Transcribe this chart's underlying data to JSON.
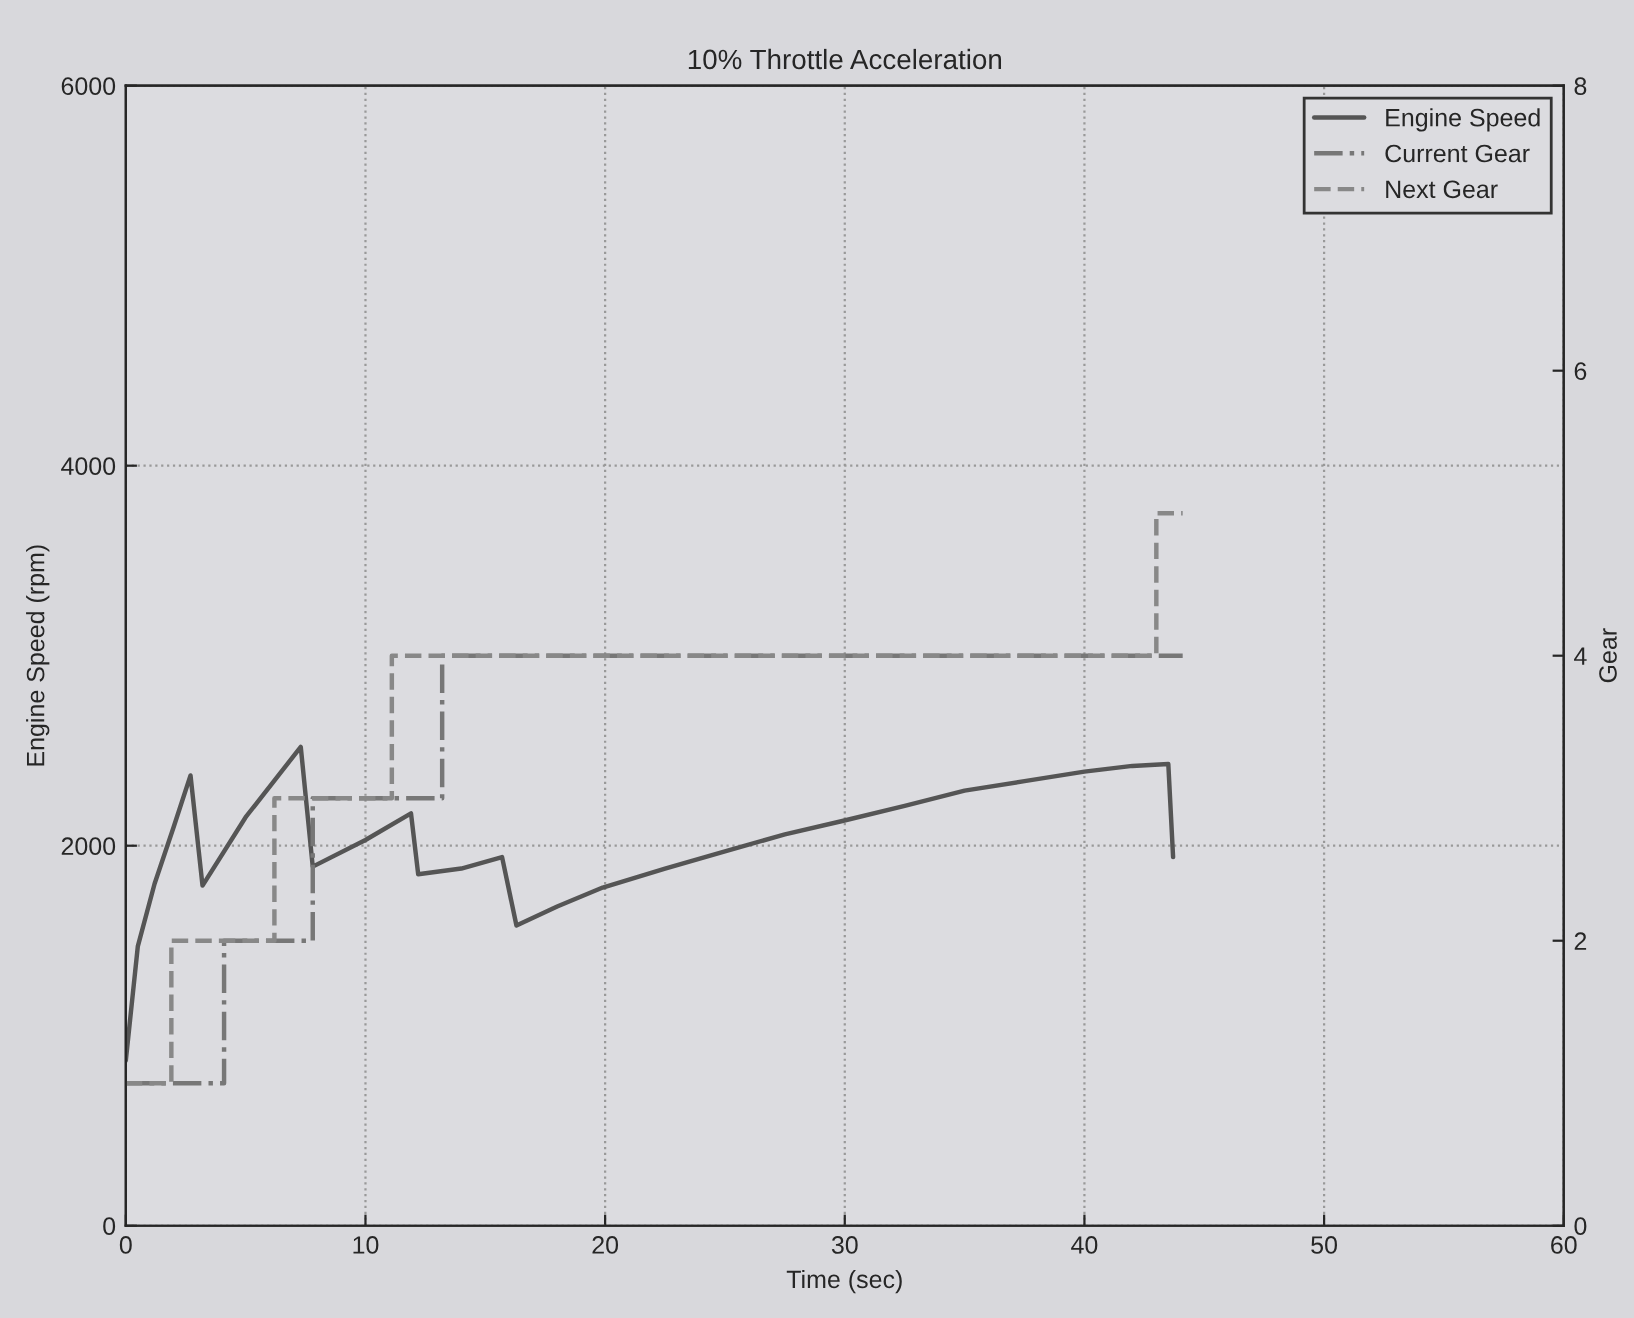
{
  "chart_data": {
    "type": "line",
    "title": "10% Throttle Acceleration",
    "xlabel": "Time (sec)",
    "ylabel": "Engine Speed (rpm)",
    "y2label": "Gear",
    "xlim": [
      0,
      60
    ],
    "xticks": [
      0,
      10,
      20,
      30,
      40,
      50,
      60
    ],
    "ylim": [
      0,
      6000
    ],
    "yticks": [
      0,
      2000,
      4000,
      6000
    ],
    "y2lim": [
      0,
      8
    ],
    "y2ticks": [
      0,
      2,
      4,
      6,
      8
    ],
    "grid": true,
    "legend": "top right",
    "series": [
      {
        "name": "Engine Speed",
        "color": "#555555",
        "line_style": "solid",
        "x": [
          0,
          0.5,
          1.2,
          2.0,
          2.7,
          3.2,
          5.0,
          7.3,
          7.8,
          10.0,
          11.9,
          12.2,
          14.0,
          15.7,
          16.3,
          18.0,
          19.9,
          22.5,
          25.0,
          27.5,
          29.9,
          32.5,
          35.0,
          37.5,
          40.0,
          42.0,
          43.5,
          43.7
        ],
        "values": [
          870,
          1470,
          1800,
          2100,
          2370,
          1790,
          2150,
          2520,
          1890,
          2030,
          2170,
          1850,
          1880,
          1940,
          1580,
          1680,
          1780,
          1880,
          1970,
          2060,
          2130,
          2210,
          2290,
          2340,
          2390,
          2420,
          2430,
          1940
        ]
      },
      {
        "name": "Current Gear",
        "type": "step",
        "axis": "y2",
        "color": "#777777",
        "line_style": "dashdot",
        "x": [
          0,
          4.1,
          7.8,
          13.2,
          44.1
        ],
        "values": [
          1,
          2,
          3,
          4,
          4
        ]
      },
      {
        "name": "Next Gear",
        "type": "step",
        "axis": "y2",
        "color": "#888888",
        "line_style": "dashed",
        "x": [
          0,
          1.9,
          6.2,
          11.1,
          43.0,
          44.1
        ],
        "values": [
          1,
          2,
          3,
          4,
          5,
          5
        ]
      }
    ]
  }
}
